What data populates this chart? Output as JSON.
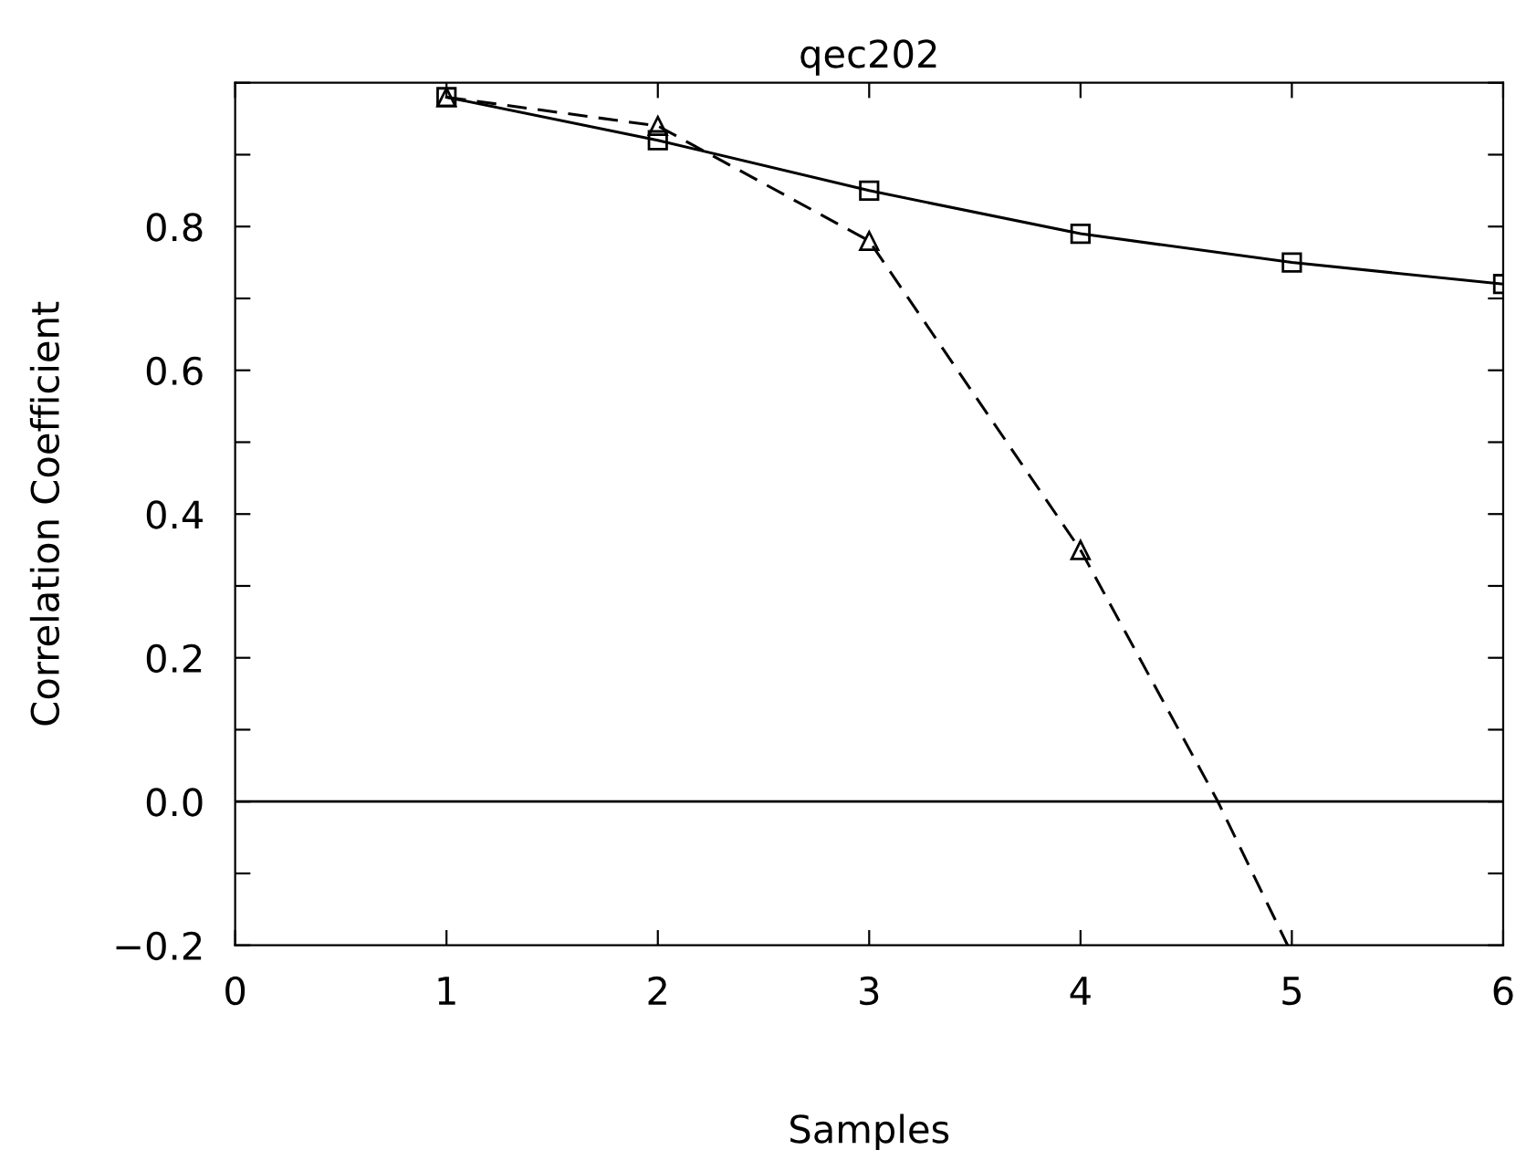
{
  "chart_data": {
    "type": "line",
    "title": "qec202",
    "xlabel": "Samples",
    "ylabel": "Correlation Coefficient",
    "xlim": [
      0,
      6
    ],
    "xticks": [
      0,
      1,
      2,
      3,
      4,
      5,
      6
    ],
    "ylim": [
      -0.2,
      1.0
    ],
    "yticks": [
      {
        "value": -0.2,
        "label": "−0.2"
      },
      {
        "value": -0.1,
        "label": null
      },
      {
        "value": 0.0,
        "label": "0.0"
      },
      {
        "value": 0.1,
        "label": null
      },
      {
        "value": 0.2,
        "label": "0.2"
      },
      {
        "value": 0.3,
        "label": null
      },
      {
        "value": 0.4,
        "label": "0.4"
      },
      {
        "value": 0.5,
        "label": null
      },
      {
        "value": 0.6,
        "label": "0.6"
      },
      {
        "value": 0.7,
        "label": null
      },
      {
        "value": 0.8,
        "label": "0.8"
      },
      {
        "value": 0.9,
        "label": null
      },
      {
        "value": 1.0,
        "label": null
      }
    ],
    "grid": false,
    "ref_lines": [
      {
        "axis": "y",
        "value": 0.0,
        "color": "#000000",
        "line_style": "solid"
      }
    ],
    "series": [
      {
        "color": "#000000",
        "marker": "square",
        "line_style": "solid",
        "x": [
          1,
          2,
          3,
          4,
          5,
          6
        ],
        "values": [
          0.98,
          0.92,
          0.85,
          0.79,
          0.75,
          0.72
        ]
      },
      {
        "color": "#000000",
        "marker": "triangle",
        "line_style": "dashed",
        "x": [
          1,
          2,
          3,
          4
        ],
        "values": [
          0.98,
          0.94,
          0.78,
          0.35
        ]
      },
      {
        "color": "#000000",
        "marker": "none",
        "line_style": "dashed",
        "x": [
          4,
          4.65,
          4.98
        ],
        "values": [
          0.35,
          0.0,
          -0.2
        ]
      }
    ]
  }
}
